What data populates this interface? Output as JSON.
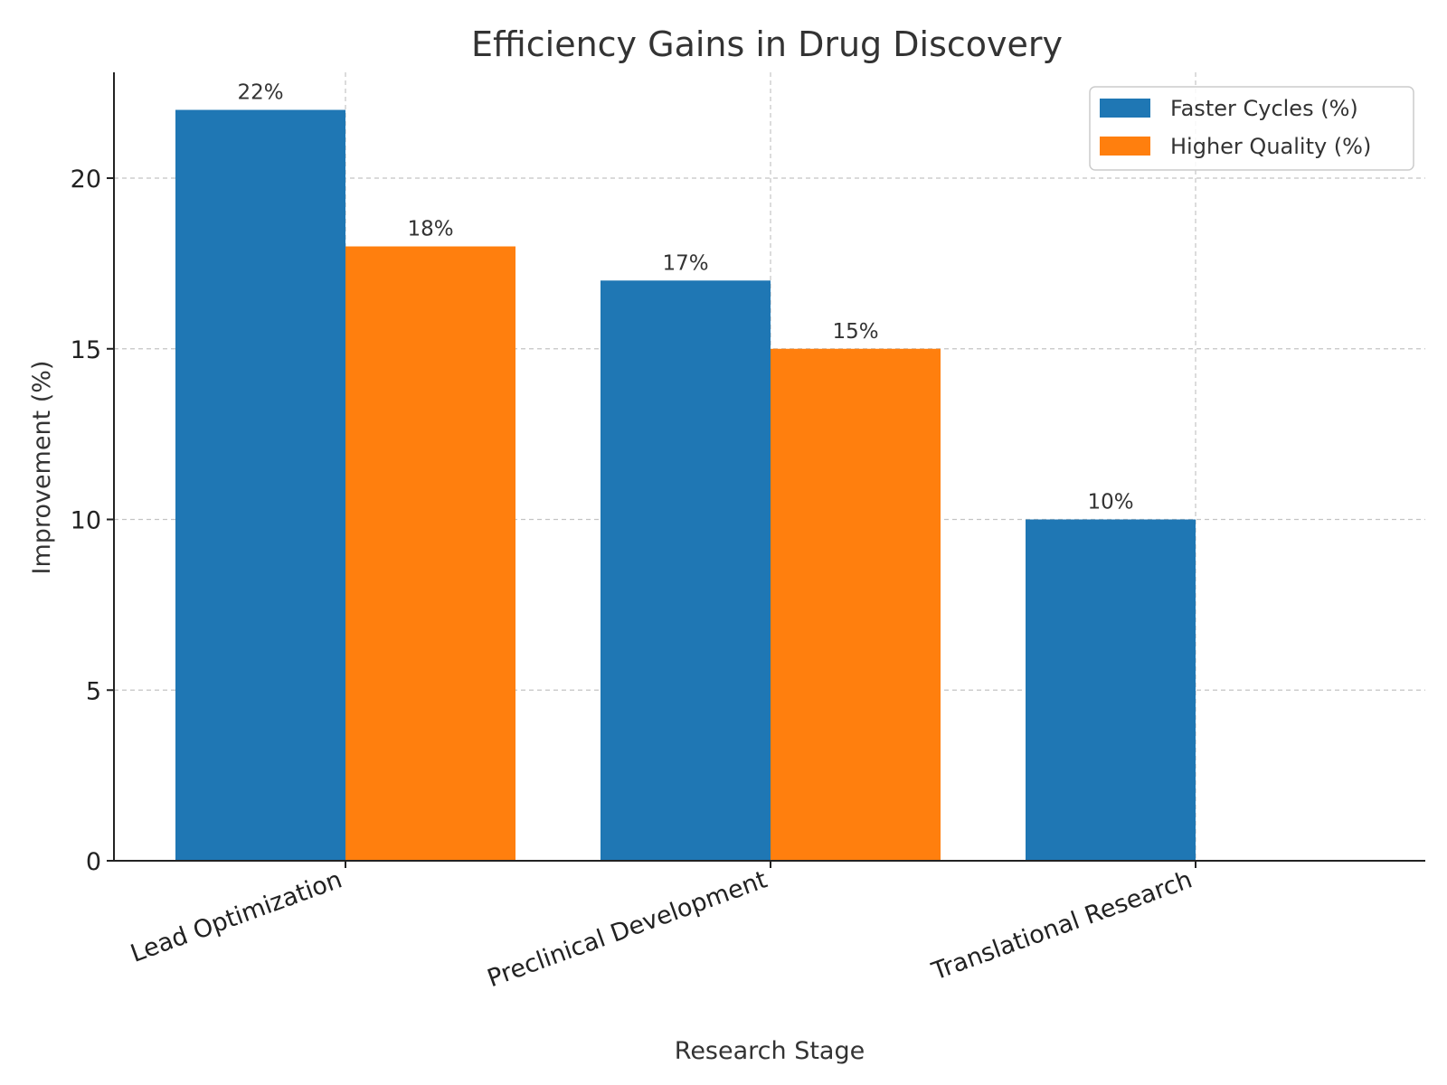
{
  "chart_data": {
    "type": "bar",
    "title": "Efficiency Gains in Drug Discovery",
    "xlabel": "Research Stage",
    "ylabel": "Improvement (%)",
    "categories": [
      "Lead Optimization",
      "Preclinical Development",
      "Translational Research"
    ],
    "series": [
      {
        "name": "Faster Cycles (%)",
        "values": [
          22,
          17,
          10
        ],
        "labels": [
          "22%",
          "17%",
          "10%"
        ],
        "color": "#1f77b4"
      },
      {
        "name": "Higher Quality (%)",
        "values": [
          18,
          15,
          null
        ],
        "labels": [
          "18%",
          "15%",
          ""
        ],
        "color": "#ff7f0e"
      }
    ],
    "ylim": [
      0,
      23.1
    ],
    "yticks": [
      0,
      5,
      10,
      15,
      20
    ],
    "grid": true,
    "legend_position": "top-right"
  }
}
